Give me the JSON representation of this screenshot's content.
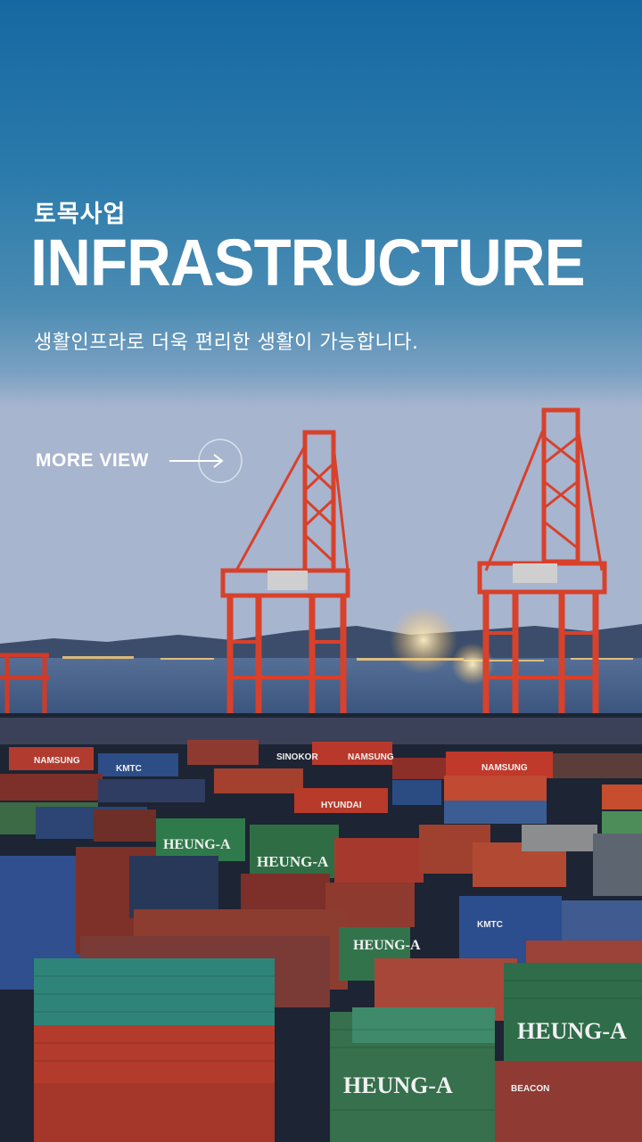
{
  "hero": {
    "kicker": "토목사업",
    "title": "INFRASTRUCTURE",
    "subtitle": "생활인프라로 더욱 편리한 생활이 가능합니다.",
    "cta_label": "MORE VIEW",
    "cta_icon": "arrow-right-circle-icon"
  },
  "scene": {
    "description_icons": [
      "gantry-crane-icon",
      "shipping-container-icon"
    ],
    "container_markings": [
      "HEUNG-A",
      "HEUNG-A",
      "HEUNG-A",
      "HEUNG-A",
      "HEUNG-A",
      "KMTC",
      "KMTC",
      "NAMSUNG",
      "NAMSUNG",
      "HYUNDAI",
      "SINOKOR",
      "BEACON"
    ]
  },
  "colors": {
    "sky_top": "#1a6fa6",
    "sky_mid": "#3e87b2",
    "horizon": "#8fa9c6",
    "crane_red": "#d8412b",
    "water": "#3d5d86",
    "text": "#ffffff"
  }
}
